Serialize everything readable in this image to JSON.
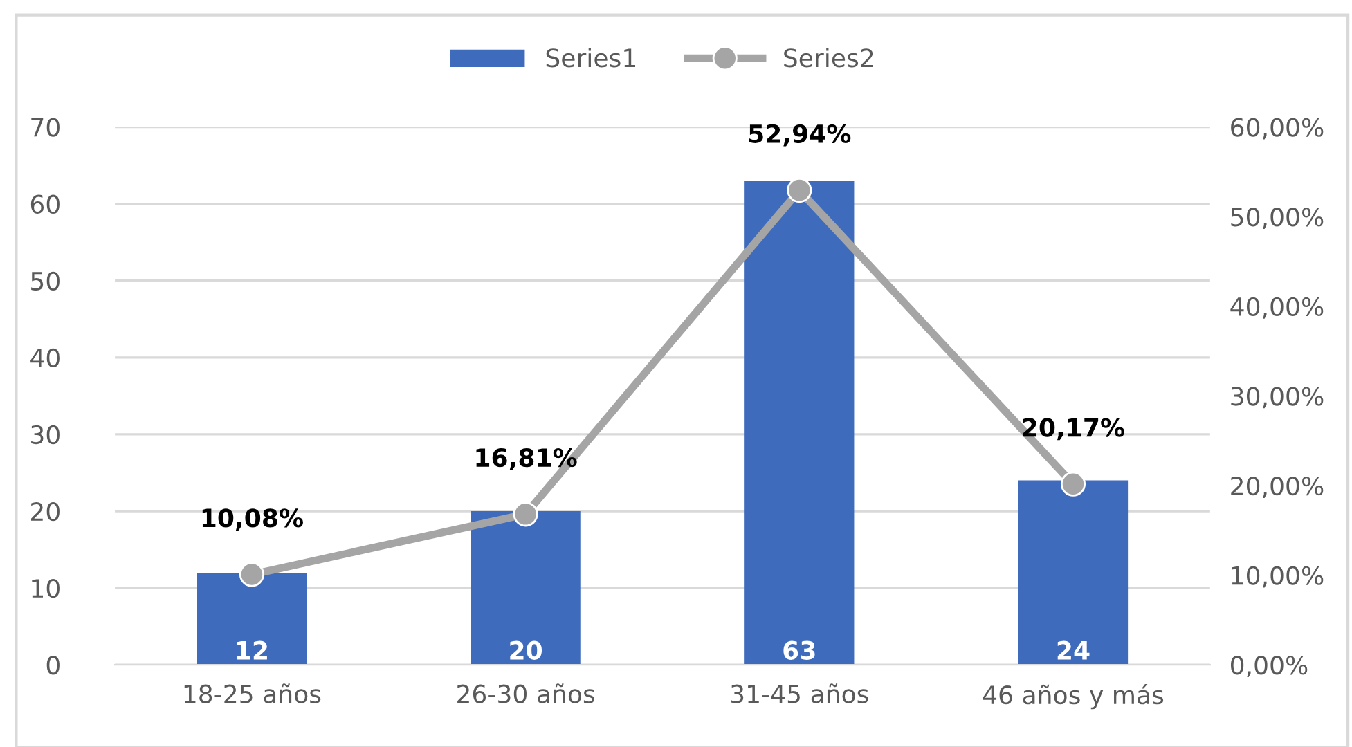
{
  "chart_data": {
    "type": "bar",
    "categories": [
      "18-25 años",
      "26-30 años",
      "31-45 años",
      "46 años y más"
    ],
    "series": [
      {
        "name": "Series1",
        "color": "#3f6bbd",
        "values": [
          12,
          20,
          63,
          24
        ],
        "value_labels": [
          "12",
          "20",
          "63",
          "24"
        ]
      },
      {
        "name": "Series2",
        "type": "line",
        "axis": "y2",
        "color": "#a5a5a5",
        "values": [
          10.08,
          16.81,
          52.94,
          20.17
        ],
        "value_labels": [
          "10,08%",
          "16,81%",
          "52,94%",
          "20,17%"
        ]
      }
    ],
    "ylim": [
      0,
      70
    ],
    "yticks": [
      0,
      10,
      20,
      30,
      40,
      50,
      60,
      70
    ],
    "y2lim": [
      0,
      60
    ],
    "y2ticks": [
      {
        "value": 0,
        "label": "0,00%"
      },
      {
        "value": 10,
        "label": "10,00%"
      },
      {
        "value": 20,
        "label": "20,00%"
      },
      {
        "value": 30,
        "label": "30,00%"
      },
      {
        "value": 40,
        "label": "40,00%"
      },
      {
        "value": 50,
        "label": "50,00%"
      },
      {
        "value": 60,
        "label": "60,00%"
      }
    ],
    "grid": "y",
    "legend": "top",
    "marker": "circle",
    "line_style": "solid"
  }
}
